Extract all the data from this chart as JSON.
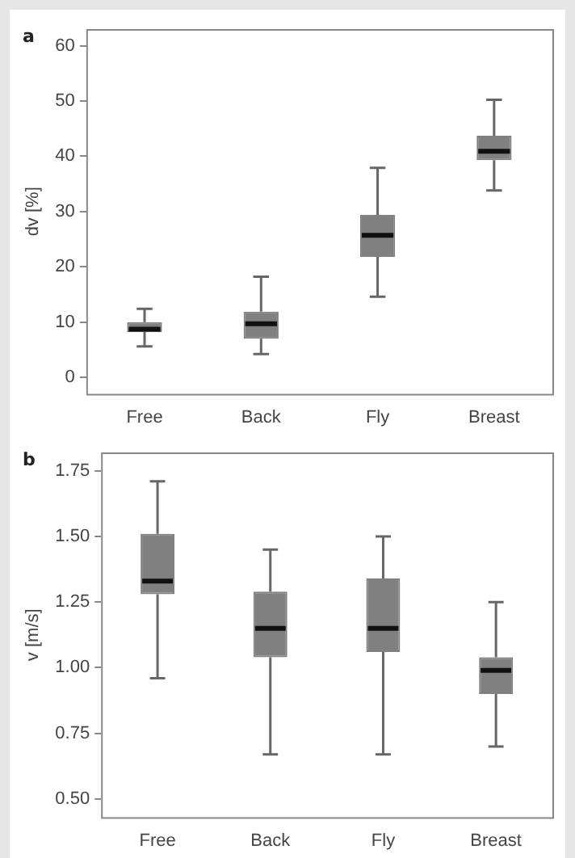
{
  "chart_data": [
    {
      "type": "box",
      "title": "a",
      "ylabel": "dv [%]",
      "categories": [
        "Free",
        "Back",
        "Fly",
        "Breast"
      ],
      "color": "#808080",
      "ylim": [
        -3,
        63
      ],
      "yticks": [
        0,
        10,
        20,
        30,
        40,
        50,
        60
      ],
      "grid": false,
      "boxes": [
        {
          "low": 5.6,
          "q1": 8.2,
          "median": 8.7,
          "q3": 10.0,
          "high": 12.4
        },
        {
          "low": 4.2,
          "q1": 7.0,
          "median": 9.7,
          "q3": 11.9,
          "high": 18.2
        },
        {
          "low": 14.6,
          "q1": 21.8,
          "median": 25.7,
          "q3": 29.4,
          "high": 37.9
        },
        {
          "low": 33.8,
          "q1": 39.3,
          "median": 40.9,
          "q3": 43.7,
          "high": 50.2
        }
      ]
    },
    {
      "type": "box",
      "title": "b",
      "ylabel": "v [m/s]",
      "categories": [
        "Free",
        "Back",
        "Fly",
        "Breast"
      ],
      "color": "#808080",
      "ylim": [
        0.43,
        1.82
      ],
      "yticks": [
        {
          "value": 0.5,
          "label": "0.50"
        },
        {
          "value": 0.75,
          "label": "0.75"
        },
        {
          "value": 1.0,
          "label": "1.00"
        },
        {
          "value": 1.25,
          "label": "1.25"
        },
        {
          "value": 1.5,
          "label": "1.50"
        },
        {
          "value": 1.75,
          "label": "1.75"
        }
      ],
      "grid": false,
      "boxes": [
        {
          "low": 0.96,
          "q1": 1.28,
          "median": 1.33,
          "q3": 1.51,
          "high": 1.71
        },
        {
          "low": 0.67,
          "q1": 1.04,
          "median": 1.15,
          "q3": 1.29,
          "high": 1.45
        },
        {
          "low": 0.67,
          "q1": 1.06,
          "median": 1.15,
          "q3": 1.34,
          "high": 1.5
        },
        {
          "low": 0.7,
          "q1": 0.9,
          "median": 0.99,
          "q3": 1.04,
          "high": 1.25
        }
      ]
    }
  ]
}
